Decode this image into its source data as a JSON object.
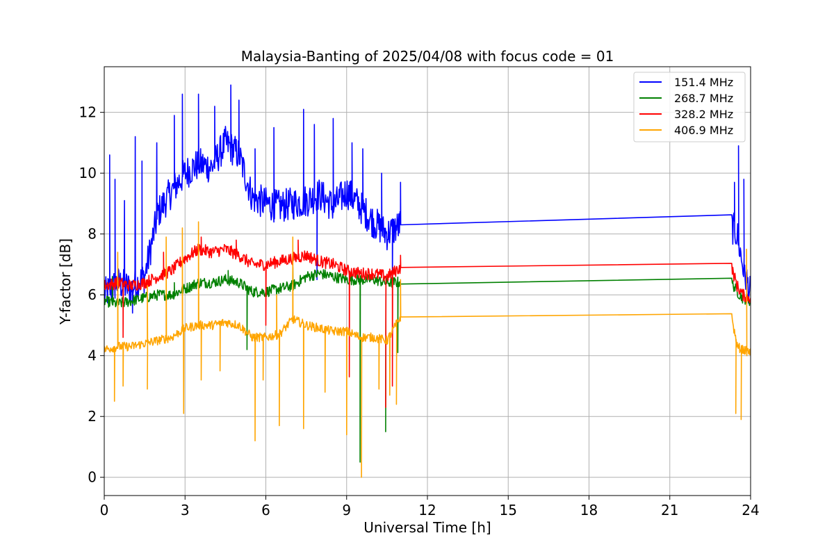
{
  "chart_data": {
    "type": "line",
    "title": "Malaysia-Banting of 2025/04/08 with focus code = 01",
    "xlabel": "Universal Time [h]",
    "ylabel": "Y-factor [dB]",
    "xlim": [
      0,
      24
    ],
    "ylim": [
      -0.6,
      13.5
    ],
    "xticks": [
      0,
      3,
      6,
      9,
      12,
      15,
      18,
      21,
      24
    ],
    "yticks": [
      0,
      2,
      4,
      6,
      8,
      10,
      12
    ],
    "grid": true,
    "legend_position": "top-right",
    "series": [
      {
        "name": "151.4 MHz",
        "color": "#0000ff",
        "x": [
          0.0,
          0.5,
          1.0,
          1.5,
          2.0,
          2.5,
          3.0,
          3.5,
          4.0,
          4.5,
          5.0,
          5.5,
          6.0,
          6.5,
          7.0,
          7.5,
          8.0,
          8.5,
          9.0,
          9.5,
          10.0,
          10.5,
          11.0,
          23.3,
          23.5,
          23.7,
          24.0
        ],
        "y": [
          6.0,
          6.4,
          6.2,
          6.6,
          8.7,
          9.4,
          10.0,
          10.3,
          10.2,
          11.0,
          10.6,
          9.2,
          9.0,
          8.9,
          9.0,
          9.1,
          9.3,
          8.9,
          9.4,
          8.9,
          8.4,
          8.0,
          8.3,
          8.24,
          8.0,
          7.0,
          6.0
        ],
        "spikes": [
          [
            0.2,
            10.6
          ],
          [
            0.4,
            9.8
          ],
          [
            0.75,
            9.1
          ],
          [
            1.15,
            11.2
          ],
          [
            1.4,
            10.4
          ],
          [
            1.95,
            11.0
          ],
          [
            2.6,
            11.9
          ],
          [
            2.9,
            12.6
          ],
          [
            3.5,
            12.6
          ],
          [
            4.1,
            12.2
          ],
          [
            4.7,
            12.9
          ],
          [
            5.0,
            12.4
          ],
          [
            5.6,
            10.8
          ],
          [
            6.3,
            11.5
          ],
          [
            7.4,
            12.1
          ],
          [
            7.8,
            11.6
          ],
          [
            8.5,
            11.8
          ],
          [
            9.2,
            11.0
          ],
          [
            9.6,
            10.8
          ],
          [
            10.3,
            10.0
          ],
          [
            11.0,
            9.7
          ],
          [
            23.4,
            9.7
          ],
          [
            23.55,
            10.9
          ],
          [
            23.75,
            9.8
          ]
        ],
        "dips": [
          [
            1.05,
            5.4
          ],
          [
            7.9,
            6.5
          ],
          [
            10.7,
            6.3
          ]
        ]
      },
      {
        "name": "268.7 MHz",
        "color": "#008000",
        "x": [
          0.0,
          0.5,
          1.0,
          1.5,
          2.0,
          2.5,
          3.0,
          3.5,
          4.0,
          4.5,
          5.0,
          5.5,
          6.0,
          6.5,
          7.0,
          7.5,
          8.0,
          8.5,
          9.0,
          9.5,
          10.0,
          10.5,
          11.0,
          23.3,
          23.5,
          23.7,
          24.0
        ],
        "y": [
          5.8,
          5.7,
          5.8,
          5.9,
          6.0,
          6.0,
          6.2,
          6.4,
          6.4,
          6.5,
          6.4,
          6.1,
          6.1,
          6.2,
          6.3,
          6.6,
          6.7,
          6.6,
          6.5,
          6.5,
          6.5,
          6.4,
          6.42,
          6.4,
          6.1,
          5.9,
          5.8
        ],
        "spikes": [
          [
            0.3,
            6.6
          ],
          [
            2.6,
            6.4
          ],
          [
            4.6,
            6.8
          ],
          [
            7.0,
            6.9
          ]
        ],
        "dips": [
          [
            5.3,
            4.2
          ],
          [
            9.5,
            0.5
          ],
          [
            10.45,
            1.5
          ],
          [
            10.9,
            4.1
          ]
        ]
      },
      {
        "name": "328.2 MHz",
        "color": "#ff0000",
        "x": [
          0.0,
          0.5,
          1.0,
          1.5,
          2.0,
          2.5,
          3.0,
          3.5,
          4.0,
          4.5,
          5.0,
          5.5,
          6.0,
          6.5,
          7.0,
          7.5,
          8.0,
          8.5,
          9.0,
          9.5,
          10.0,
          10.5,
          11.0,
          23.3,
          23.5,
          23.7,
          24.0
        ],
        "y": [
          6.3,
          6.4,
          6.3,
          6.4,
          6.6,
          6.8,
          7.2,
          7.5,
          7.4,
          7.5,
          7.3,
          7.0,
          7.0,
          7.1,
          7.2,
          7.3,
          7.1,
          7.0,
          6.8,
          6.7,
          6.7,
          6.6,
          6.9,
          6.88,
          6.3,
          6.0,
          5.9
        ],
        "spikes": [
          [
            2.2,
            7.4
          ],
          [
            3.6,
            7.9
          ],
          [
            4.9,
            7.8
          ],
          [
            7.2,
            7.8
          ],
          [
            11.0,
            7.3
          ]
        ],
        "dips": [
          [
            0.7,
            4.6
          ],
          [
            6.0,
            5.0
          ],
          [
            9.1,
            3.3
          ],
          [
            10.45,
            2.3
          ],
          [
            10.7,
            3.0
          ]
        ]
      },
      {
        "name": "406.9 MHz",
        "color": "#ffa500",
        "x": [
          0.0,
          0.5,
          1.0,
          1.5,
          2.0,
          2.5,
          3.0,
          3.5,
          4.0,
          4.5,
          5.0,
          5.5,
          6.0,
          6.5,
          7.0,
          7.5,
          8.0,
          8.5,
          9.0,
          9.5,
          10.0,
          10.5,
          11.0,
          23.3,
          23.5,
          23.7,
          24.0
        ],
        "y": [
          4.2,
          4.3,
          4.3,
          4.4,
          4.5,
          4.6,
          4.9,
          5.0,
          5.0,
          5.1,
          5.0,
          4.6,
          4.6,
          4.7,
          5.2,
          5.0,
          4.9,
          4.8,
          4.8,
          4.6,
          4.6,
          4.5,
          5.27,
          5.25,
          4.3,
          4.2,
          4.1
        ],
        "spikes": [
          [
            0.5,
            7.4
          ],
          [
            1.6,
            6.3
          ],
          [
            2.3,
            7.9
          ],
          [
            2.9,
            8.2
          ],
          [
            3.5,
            8.4
          ],
          [
            6.4,
            6.0
          ],
          [
            7.0,
            7.9
          ],
          [
            11.0,
            6.5
          ],
          [
            23.85,
            7.5
          ]
        ],
        "dips": [
          [
            0.38,
            2.5
          ],
          [
            0.7,
            3.0
          ],
          [
            1.6,
            2.9
          ],
          [
            2.95,
            2.1
          ],
          [
            3.6,
            3.2
          ],
          [
            4.3,
            3.5
          ],
          [
            5.6,
            1.2
          ],
          [
            5.9,
            3.2
          ],
          [
            6.5,
            1.7
          ],
          [
            7.4,
            1.6
          ],
          [
            8.2,
            2.8
          ],
          [
            9.0,
            1.4
          ],
          [
            9.55,
            0.0
          ],
          [
            10.2,
            2.9
          ],
          [
            10.6,
            2.7
          ],
          [
            10.85,
            2.4
          ],
          [
            23.45,
            2.1
          ],
          [
            23.65,
            1.9
          ]
        ]
      }
    ]
  }
}
